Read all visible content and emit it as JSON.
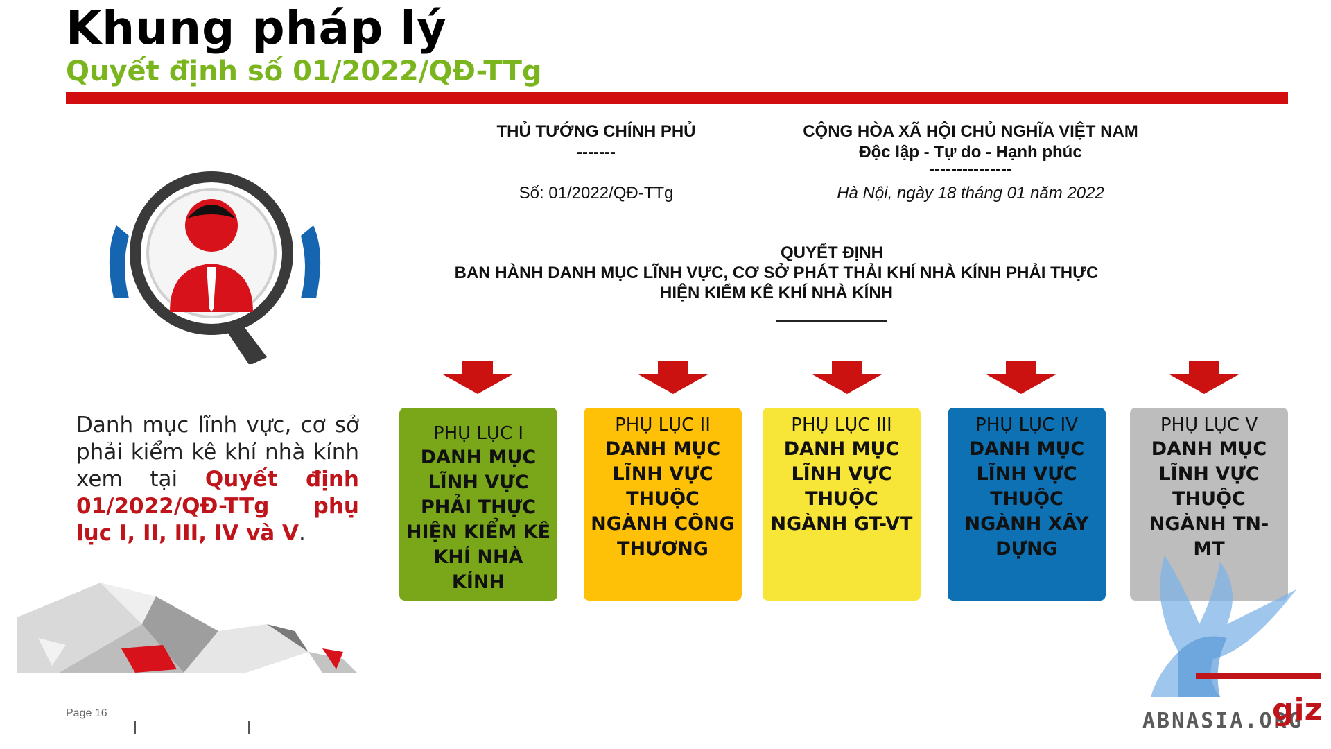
{
  "slide": {
    "title": "Khung pháp lý",
    "subtitle": "Quyết định số 01/2022/QĐ-TTg"
  },
  "document": {
    "issuer": "THỦ TƯỚNG CHÍNH PHỦ",
    "issuer_rule": "-------",
    "number": "Số: 01/2022/QĐ-TTg",
    "nation": "CỘNG HÒA XÃ HỘI CHỦ NGHĨA VIỆT NAM",
    "motto": "Độc lập - Tự do - Hạnh phúc",
    "motto_rule": "---------------",
    "date": "Hà Nội, ngày 18 tháng 01 năm 2022",
    "decision_label": "QUYẾT ĐỊNH",
    "decision_title": "BAN HÀNH DANH MỤC LĨNH VỰC, CƠ SỞ PHÁT THẢI KHÍ NHÀ KÍNH PHẢI THỰC HIỆN KIỂM KÊ KHÍ NHÀ KÍNH"
  },
  "annexes": [
    {
      "label": "PHỤ LỤC I",
      "body": "DANH MỤC LĨNH VỰC PHẢI THỰC HIỆN KIỂM KÊ KHÍ NHÀ KÍNH",
      "color": "#7aa71a"
    },
    {
      "label": "PHỤ LỤC II",
      "body": "DANH MỤC LĨNH VỰC THUỘC NGÀNH CÔNG THƯƠNG",
      "color": "#ffc107"
    },
    {
      "label": "PHỤ LỤC III",
      "body": "DANH MỤC LĨNH VỰC THUỘC NGÀNH GT-VT",
      "color": "#f7e538"
    },
    {
      "label": "PHỤ LỤC IV",
      "body": "DANH MỤC LĨNH VỰC THUỘC NGÀNH XÂY DỰNG",
      "color": "#0d71b3"
    },
    {
      "label": "PHỤ LỤC V",
      "body": "DANH MỤC LĨNH VỰC THUỘC NGÀNH TN-MT",
      "color": "#bdbdbd"
    }
  ],
  "note": {
    "text_before": "Danh mục lĩnh vực, cơ sở phải kiểm kê khí nhà kính xem tại ",
    "highlight": "Quyết định 01/2022/QĐ-TTg phụ lục I, II, III, IV và V",
    "text_after": "."
  },
  "footer": {
    "page": "Page 16",
    "watermark": "ABNASIA.ORG",
    "logo": "giz"
  },
  "colors": {
    "accent_red": "#d10d10",
    "subtitle_green": "#7ab51d",
    "arrow_red": "#cc1111"
  },
  "icons": [
    "magnifier-person-icon",
    "down-arrow-icon",
    "griffin-watermark-icon",
    "polygon-decoration"
  ]
}
